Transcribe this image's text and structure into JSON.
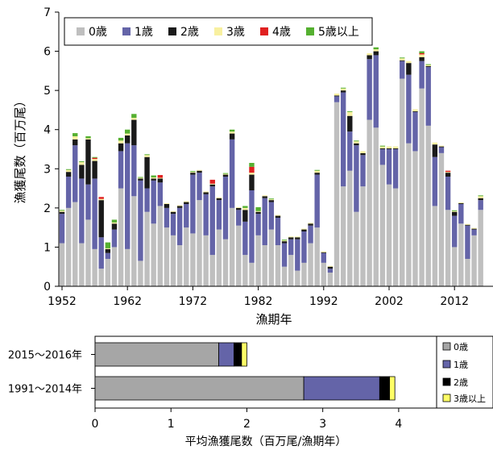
{
  "chart_data": [
    {
      "type": "bar",
      "stacked": true,
      "xlabel": "漁期年",
      "ylabel": "漁獲尾数（百万尾）",
      "ylim": [
        0,
        7
      ],
      "yticks": [
        "0",
        "1",
        "2",
        "3",
        "4",
        "5",
        "6",
        "7"
      ],
      "xticks": [
        "1952",
        "1962",
        "1972",
        "1982",
        "1992",
        "2002",
        "2012"
      ],
      "legend_placement": "top-left",
      "grid": false,
      "x": [
        1952,
        1953,
        1954,
        1955,
        1956,
        1957,
        1958,
        1959,
        1960,
        1961,
        1962,
        1963,
        1964,
        1965,
        1966,
        1967,
        1968,
        1969,
        1970,
        1971,
        1972,
        1973,
        1974,
        1975,
        1976,
        1977,
        1978,
        1979,
        1980,
        1981,
        1982,
        1983,
        1984,
        1985,
        1986,
        1987,
        1988,
        1989,
        1990,
        1991,
        1992,
        1993,
        1994,
        1995,
        1996,
        1997,
        1998,
        1999,
        2000,
        2001,
        2002,
        2003,
        2004,
        2005,
        2006,
        2007,
        2008,
        2009,
        2010,
        2011,
        2012,
        2013,
        2014,
        2015,
        2016
      ],
      "series": [
        {
          "name": "0歳",
          "color": "#bfbfbf",
          "values": [
            1.1,
            2.0,
            2.15,
            1.1,
            1.7,
            0.95,
            0.45,
            0.7,
            1.0,
            2.5,
            0.95,
            2.3,
            0.65,
            1.9,
            1.6,
            2.05,
            1.5,
            1.3,
            1.05,
            1.5,
            1.35,
            2.2,
            1.3,
            0.8,
            1.45,
            1.2,
            2.0,
            1.55,
            0.8,
            0.6,
            1.3,
            1.05,
            1.45,
            1.05,
            0.5,
            0.8,
            0.4,
            0.6,
            1.1,
            1.5,
            0.6,
            0.35,
            4.7,
            2.55,
            2.95,
            1.9,
            2.55,
            4.25,
            4.05,
            3.1,
            2.6,
            2.5,
            5.3,
            3.65,
            3.45,
            5.05,
            4.1,
            2.05,
            3.4,
            1.95,
            1.0,
            1.6,
            0.7,
            1.3,
            1.95
          ]
        },
        {
          "name": "1歳",
          "color": "#6464a8",
          "values": [
            0.75,
            0.8,
            1.45,
            1.65,
            0.9,
            1.8,
            0.8,
            0.15,
            0.45,
            0.95,
            2.7,
            1.3,
            2.05,
            0.6,
            1.1,
            0.6,
            0.5,
            0.55,
            0.95,
            0.6,
            1.5,
            0.7,
            1.05,
            1.75,
            0.75,
            1.6,
            1.75,
            0.4,
            0.85,
            1.85,
            0.55,
            1.2,
            0.7,
            0.7,
            0.6,
            0.4,
            0.8,
            0.8,
            0.45,
            1.35,
            0.25,
            0.1,
            0.15,
            2.4,
            1.0,
            1.7,
            0.8,
            1.55,
            1.85,
            0.4,
            0.9,
            1.0,
            0.45,
            1.75,
            1.0,
            0.7,
            1.5,
            1.25,
            0.15,
            0.85,
            0.8,
            0.5,
            0.85,
            0.15,
            0.25
          ]
        },
        {
          "name": "2歳",
          "color": "#1a1a1a",
          "values": [
            0.05,
            0.12,
            0.15,
            0.35,
            1.15,
            0.45,
            0.95,
            0.1,
            0.15,
            0.2,
            0.2,
            0.65,
            0.05,
            0.8,
            0.05,
            0.1,
            0.1,
            0.05,
            0.05,
            0.05,
            0.05,
            0.05,
            0.05,
            0.05,
            0.05,
            0.05,
            0.15,
            0.05,
            0.3,
            0.4,
            0.05,
            0.05,
            0.05,
            0.05,
            0.05,
            0.05,
            0.05,
            0.05,
            0.05,
            0.05,
            0.02,
            0.05,
            0.02,
            0.05,
            0.4,
            0.05,
            0.05,
            0.1,
            0.1,
            0.02,
            0.02,
            0.02,
            0.02,
            0.3,
            0.02,
            0.1,
            0.02,
            0.32,
            0.02,
            0.1,
            0.1,
            0.02,
            0.02,
            0.02,
            0.05
          ]
        },
        {
          "name": "3歳",
          "color": "#f8f0a0",
          "values": [
            0.03,
            0.05,
            0.08,
            0.07,
            0.03,
            0.05,
            0.03,
            0.02,
            0.03,
            0.07,
            0.05,
            0.05,
            0.02,
            0.05,
            0.03,
            0.02,
            0.02,
            0.02,
            0.02,
            0.02,
            0.02,
            0.02,
            0.02,
            0.02,
            0.02,
            0.02,
            0.05,
            0.02,
            0.05,
            0.05,
            0.02,
            0.02,
            0.02,
            0.02,
            0.02,
            0.02,
            0.02,
            0.02,
            0.02,
            0.05,
            0.02,
            0.02,
            0.05,
            0.05,
            0.1,
            0.05,
            0.05,
            0.05,
            0.05,
            0.05,
            0.05,
            0.05,
            0.05,
            0.05,
            0.05,
            0.07,
            0.03,
            0.05,
            0.02,
            0.02,
            0.02,
            0.02,
            0.02,
            0.02,
            0.05
          ]
        },
        {
          "name": "4歳",
          "color": "#e02020",
          "values": [
            0,
            0,
            0,
            0,
            0,
            0.03,
            0.05,
            0,
            0,
            0,
            0,
            0,
            0,
            0,
            0,
            0.07,
            0,
            0,
            0,
            0,
            0,
            0,
            0,
            0.1,
            0,
            0,
            0,
            0,
            0,
            0.15,
            0,
            0,
            0,
            0,
            0,
            0,
            0,
            0,
            0,
            0,
            0,
            0,
            0,
            0,
            0,
            0,
            0,
            0,
            0,
            0,
            0,
            0,
            0,
            0,
            0,
            0.03,
            0,
            0,
            0,
            0.03,
            0,
            0,
            0,
            0,
            0
          ]
        },
        {
          "name": "5歳以上",
          "color": "#55b030",
          "values": [
            0.02,
            0.02,
            0.08,
            0.02,
            0.05,
            0.02,
            0,
            0.15,
            0.07,
            0.07,
            0.1,
            0.1,
            0.02,
            0.02,
            0.05,
            0,
            0,
            0,
            0,
            0,
            0.02,
            0,
            0,
            0,
            0,
            0.02,
            0.05,
            0,
            0.05,
            0.1,
            0.1,
            0,
            0.02,
            0,
            0.02,
            0,
            0,
            0,
            0,
            0.02,
            0,
            0,
            0,
            0.02,
            0.02,
            0.02,
            0,
            0,
            0.05,
            0.02,
            0,
            0,
            0.02,
            0,
            0,
            0.05,
            0.02,
            0,
            0,
            0,
            0.02,
            0,
            0,
            0,
            0.02
          ]
        }
      ]
    },
    {
      "type": "bar",
      "orientation": "horizontal",
      "stacked": true,
      "xlabel": "平均漁獲尾数（百万尾/漁期年）",
      "xlim": [
        0,
        4.5
      ],
      "xticks": [
        "0",
        "1",
        "2",
        "3",
        "4"
      ],
      "legend_placement": "right",
      "categories": [
        "2015〜2016年",
        "1991〜2014年"
      ],
      "series": [
        {
          "name": "0歳",
          "color": "#a6a6a6",
          "values": [
            1.63,
            2.75
          ]
        },
        {
          "name": "1歳",
          "color": "#6464a8",
          "values": [
            0.2,
            1.0
          ]
        },
        {
          "name": "2歳",
          "color": "#000000",
          "values": [
            0.1,
            0.13
          ]
        },
        {
          "name": "3歳以上",
          "color": "#ffff66",
          "values": [
            0.07,
            0.07
          ]
        }
      ]
    }
  ]
}
